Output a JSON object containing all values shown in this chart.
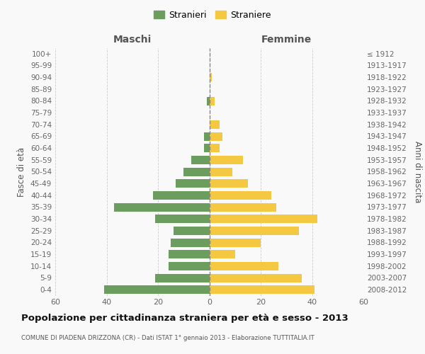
{
  "age_groups": [
    "0-4",
    "5-9",
    "10-14",
    "15-19",
    "20-24",
    "25-29",
    "30-34",
    "35-39",
    "40-44",
    "45-49",
    "50-54",
    "55-59",
    "60-64",
    "65-69",
    "70-74",
    "75-79",
    "80-84",
    "85-89",
    "90-94",
    "95-99",
    "100+"
  ],
  "birth_years": [
    "2008-2012",
    "2003-2007",
    "1998-2002",
    "1993-1997",
    "1988-1992",
    "1983-1987",
    "1978-1982",
    "1973-1977",
    "1968-1972",
    "1963-1967",
    "1958-1962",
    "1953-1957",
    "1948-1952",
    "1943-1947",
    "1938-1942",
    "1933-1937",
    "1928-1932",
    "1923-1927",
    "1918-1922",
    "1913-1917",
    "≤ 1912"
  ],
  "males": [
    41,
    21,
    16,
    16,
    15,
    14,
    21,
    37,
    22,
    13,
    10,
    7,
    2,
    2,
    0,
    0,
    1,
    0,
    0,
    0,
    0
  ],
  "females": [
    41,
    36,
    27,
    10,
    20,
    35,
    42,
    26,
    24,
    15,
    9,
    13,
    4,
    5,
    4,
    0,
    2,
    0,
    1,
    0,
    0
  ],
  "male_color": "#6b9e5e",
  "female_color": "#f5c842",
  "bg_color": "#f9f9f9",
  "grid_color": "#cccccc",
  "title": "Popolazione per cittadinanza straniera per età e sesso - 2013",
  "subtitle": "COMUNE DI PIADENA DRIZZONA (CR) - Dati ISTAT 1° gennaio 2013 - Elaborazione TUTTITALIA.IT",
  "legend_male": "Stranieri",
  "legend_female": "Straniere",
  "xlabel_left": "Maschi",
  "xlabel_right": "Femmine",
  "ylabel_left": "Fasce di età",
  "ylabel_right": "Anni di nascita",
  "xlim": 60
}
